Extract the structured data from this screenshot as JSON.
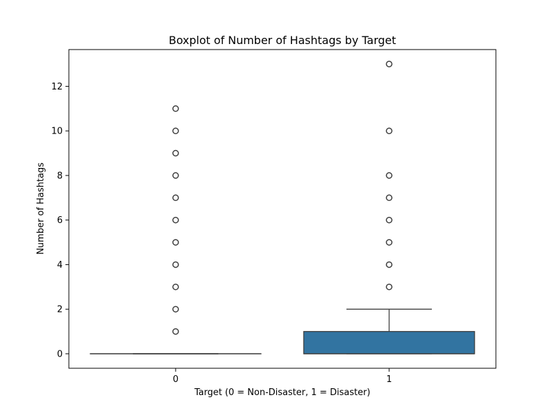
{
  "chart_data": {
    "type": "box",
    "title": "Boxplot of Number of Hashtags by Target",
    "xlabel": "Target (0 = Non-Disaster, 1 = Disaster)",
    "ylabel": "Number of Hashtags",
    "categories": [
      "0",
      "1"
    ],
    "ylim": [
      -0.65,
      13.65
    ],
    "yticks": [
      0,
      2,
      4,
      6,
      8,
      10,
      12
    ],
    "grid": false,
    "box_color": "#3274a1",
    "boxes": [
      {
        "category": "0",
        "min": 0,
        "q1": 0,
        "median": 0,
        "q3": 0,
        "max": 0,
        "outliers": [
          1,
          2,
          3,
          4,
          5,
          6,
          7,
          8,
          9,
          10,
          11
        ]
      },
      {
        "category": "1",
        "min": 0,
        "q1": 0,
        "median": 0,
        "q3": 1,
        "max": 2,
        "outliers": [
          3,
          4,
          5,
          6,
          7,
          8,
          10,
          13
        ]
      }
    ]
  }
}
